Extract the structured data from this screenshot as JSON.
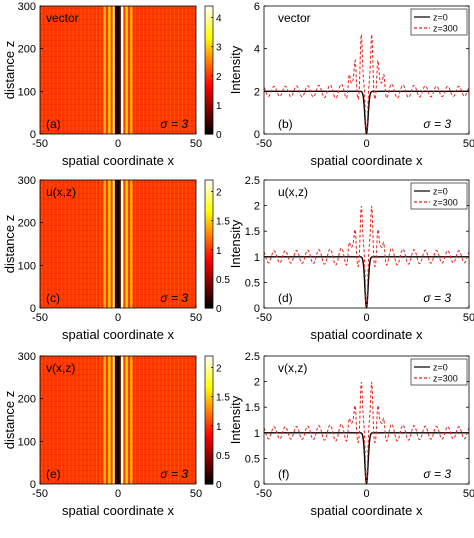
{
  "chart_data": [
    {
      "type": "heatmap",
      "panel_label": "(a)",
      "annotation": "vector",
      "sigma_label": "σ = 3",
      "xlabel": "spatial coordinate x",
      "ylabel": "distance  z",
      "xlim": [
        -50,
        50
      ],
      "ylim": [
        0,
        300
      ],
      "x_ticks": [
        "-50",
        "0",
        "50"
      ],
      "y_ticks": [
        "0",
        "100",
        "200",
        "300"
      ],
      "colorbar": {
        "min": 0,
        "max": 4.4,
        "ticks": [
          "0",
          "1",
          "2",
          "3",
          "4"
        ],
        "colormap": "hot"
      },
      "background_value": 2.0,
      "stripes": [
        {
          "x": -2.6,
          "value": 3.8
        },
        {
          "x": -1.3,
          "value": 0.4
        },
        {
          "x": 0,
          "value": 0.0
        },
        {
          "x": 1.3,
          "value": 0.4
        },
        {
          "x": 2.6,
          "value": 4.3
        },
        {
          "x": -5.5,
          "value": 3.0
        },
        {
          "x": 5.5,
          "value": 3.0
        },
        {
          "x": -8.5,
          "value": 2.8
        },
        {
          "x": 8.5,
          "value": 2.8
        }
      ]
    },
    {
      "type": "line",
      "panel_label": "(b)",
      "annotation": "vector",
      "sigma_label": "σ = 3",
      "xlabel": "spatial coordinate x",
      "ylabel": "Intensity",
      "xlim": [
        -50,
        50
      ],
      "ylim": [
        0,
        6
      ],
      "x_ticks": [
        "-50",
        "0",
        "50"
      ],
      "y_ticks": [
        "0",
        "2",
        "4",
        "6"
      ],
      "legend_position": "top-right",
      "series": [
        {
          "name": "z=0",
          "color": "#000000",
          "style": "solid",
          "background": 2.0,
          "dip": 0.0,
          "osc_amp": 0.0,
          "peak": 2.0
        },
        {
          "name": "z=300",
          "color": "#e8231c",
          "style": "dashed",
          "background": 2.0,
          "dip": 0.0,
          "osc_amp": 0.5,
          "peak": 4.6
        }
      ]
    },
    {
      "type": "heatmap",
      "panel_label": "(c)",
      "annotation": "u(x,z)",
      "sigma_label": "σ = 3",
      "xlabel": "spatial coordinate x",
      "ylabel": "distance  z",
      "xlim": [
        -50,
        50
      ],
      "ylim": [
        0,
        300
      ],
      "x_ticks": [
        "-50",
        "0",
        "50"
      ],
      "y_ticks": [
        "0",
        "100",
        "200",
        "300"
      ],
      "colorbar": {
        "min": 0,
        "max": 2.2,
        "ticks": [
          "0",
          "0.5",
          "1",
          "1.5",
          "2"
        ],
        "colormap": "hot"
      },
      "background_value": 1.0,
      "stripes": [
        {
          "x": -2.6,
          "value": 1.9
        },
        {
          "x": -1.3,
          "value": 0.2
        },
        {
          "x": 0,
          "value": 0.0
        },
        {
          "x": 1.3,
          "value": 0.2
        },
        {
          "x": 2.6,
          "value": 2.1
        },
        {
          "x": -5.5,
          "value": 1.5
        },
        {
          "x": 5.5,
          "value": 1.5
        },
        {
          "x": -8.5,
          "value": 1.4
        },
        {
          "x": 8.5,
          "value": 1.4
        }
      ]
    },
    {
      "type": "line",
      "panel_label": "(d)",
      "annotation": "u(x,z)",
      "sigma_label": "σ = 3",
      "xlabel": "spatial coordinate x",
      "ylabel": "Intensity",
      "xlim": [
        -50,
        50
      ],
      "ylim": [
        0,
        2.5
      ],
      "x_ticks": [
        "-50",
        "0",
        "50"
      ],
      "y_ticks": [
        "0",
        "0.5",
        "1",
        "1.5",
        "2",
        "2.5"
      ],
      "legend_position": "top-right",
      "series": [
        {
          "name": "z=0",
          "color": "#000000",
          "style": "solid",
          "background": 1.0,
          "dip": 0.0,
          "osc_amp": 0.0,
          "peak": 1.0
        },
        {
          "name": "z=300",
          "color": "#e8231c",
          "style": "dashed",
          "background": 1.0,
          "dip": 0.0,
          "osc_amp": 0.25,
          "peak": 1.95
        }
      ]
    },
    {
      "type": "heatmap",
      "panel_label": "(e)",
      "annotation": "v(x,z)",
      "sigma_label": "σ = 3",
      "xlabel": "spatial coordinate x",
      "ylabel": "distance  z",
      "xlim": [
        -50,
        50
      ],
      "ylim": [
        0,
        300
      ],
      "x_ticks": [
        "-50",
        "0",
        "50"
      ],
      "y_ticks": [
        "0",
        "100",
        "200",
        "300"
      ],
      "colorbar": {
        "min": 0,
        "max": 2.2,
        "ticks": [
          "0",
          "0.5",
          "1",
          "1.5",
          "2"
        ],
        "colormap": "hot"
      },
      "background_value": 1.0,
      "stripes": [
        {
          "x": -2.6,
          "value": 1.9
        },
        {
          "x": -1.3,
          "value": 0.2
        },
        {
          "x": 0,
          "value": 0.0
        },
        {
          "x": 1.3,
          "value": 0.2
        },
        {
          "x": 2.6,
          "value": 2.1
        },
        {
          "x": -5.5,
          "value": 1.5
        },
        {
          "x": 5.5,
          "value": 1.5
        },
        {
          "x": -8.5,
          "value": 1.4
        },
        {
          "x": 8.5,
          "value": 1.4
        }
      ]
    },
    {
      "type": "line",
      "panel_label": "(f)",
      "annotation": "v(x,z)",
      "sigma_label": "σ = 3",
      "xlabel": "spatial coordinate x",
      "ylabel": "Intensity",
      "xlim": [
        -50,
        50
      ],
      "ylim": [
        0,
        2.5
      ],
      "x_ticks": [
        "-50",
        "0",
        "50"
      ],
      "y_ticks": [
        "0",
        "0.5",
        "1",
        "1.5",
        "2",
        "2.5"
      ],
      "legend_position": "top-right",
      "series": [
        {
          "name": "z=0",
          "color": "#000000",
          "style": "solid",
          "background": 1.0,
          "dip": 0.0,
          "osc_amp": 0.0,
          "peak": 1.0
        },
        {
          "name": "z=300",
          "color": "#e8231c",
          "style": "dashed",
          "background": 1.0,
          "dip": 0.0,
          "osc_amp": 0.25,
          "peak": 1.95
        }
      ]
    }
  ]
}
